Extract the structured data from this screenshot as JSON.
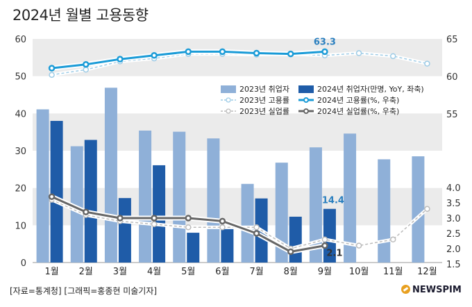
{
  "title": "2024년 월별 고용동향",
  "credit": "[자료=통계청] [그래픽=홍종현 미술기자]",
  "logo_text": "NEWSPIM",
  "chart_data": {
    "type": "bar",
    "categories": [
      "1월",
      "2월",
      "3월",
      "4월",
      "5월",
      "6월",
      "7월",
      "8월",
      "9월",
      "10월",
      "11월",
      "12월"
    ],
    "left_axis": {
      "ylim": [
        0,
        60
      ],
      "ticks": [
        0,
        10,
        20,
        30,
        40,
        50,
        60
      ]
    },
    "right_axis_upper": {
      "ylim": [
        55,
        65
      ],
      "ticks": [
        55,
        60,
        65
      ]
    },
    "right_axis_lower": {
      "ylim": [
        1.5,
        4.0
      ],
      "ticks": [
        "1.5",
        "2.0",
        "2.5",
        "3.0",
        "3.5",
        "4.0"
      ]
    },
    "bar_series": [
      {
        "name": "2023년 취업자",
        "color": "#8fb0d8",
        "values": [
          41.1,
          31.2,
          46.9,
          35.4,
          35.1,
          33.3,
          21.1,
          26.8,
          30.9,
          34.6,
          27.7,
          28.5
        ]
      },
      {
        "name": "2024년 취업자(만명, YoY, 좌축)",
        "color": "#1f5ca8",
        "values": [
          38.0,
          32.9,
          17.3,
          26.1,
          8.0,
          9.0,
          17.2,
          12.3,
          14.4,
          null,
          null,
          null
        ]
      }
    ],
    "line_series": [
      {
        "name": "2023년 고용률",
        "axis": "right_upper",
        "color": "#9ccbe6",
        "values": [
          60.2,
          60.9,
          62.0,
          62.4,
          63.0,
          63.0,
          62.9,
          63.0,
          62.8,
          63.1,
          62.7,
          61.7
        ]
      },
      {
        "name": "2024년 고용률(%, 우축)",
        "axis": "right_upper",
        "color": "#1a9bd7",
        "values": [
          61.1,
          61.6,
          62.3,
          62.8,
          63.3,
          63.3,
          63.1,
          63.0,
          63.3,
          null,
          null,
          null
        ]
      },
      {
        "name": "2023년 실업률",
        "axis": "right_lower",
        "color": "#bbbbbb",
        "values": [
          3.6,
          3.1,
          2.9,
          2.8,
          2.7,
          2.7,
          2.7,
          2.0,
          2.3,
          2.1,
          2.3,
          3.3
        ]
      },
      {
        "name": "2024년 실업률(%, 우축)",
        "axis": "right_lower",
        "color": "#666666",
        "values": [
          3.7,
          3.2,
          3.0,
          3.0,
          3.0,
          2.9,
          2.5,
          1.9,
          2.1,
          null,
          null,
          null
        ]
      }
    ],
    "annotations": [
      {
        "text": "63.3",
        "series": "2024년 고용률(%, 우축)",
        "category": "9월"
      },
      {
        "text": "14.4",
        "series": "2024년 취업자(만명, YoY, 좌축)",
        "category": "9월"
      },
      {
        "text": "2.1",
        "series": "2024년 실업률(%, 우축)",
        "category": "9월"
      }
    ],
    "legend_position": "top-right",
    "background_bands": true
  }
}
